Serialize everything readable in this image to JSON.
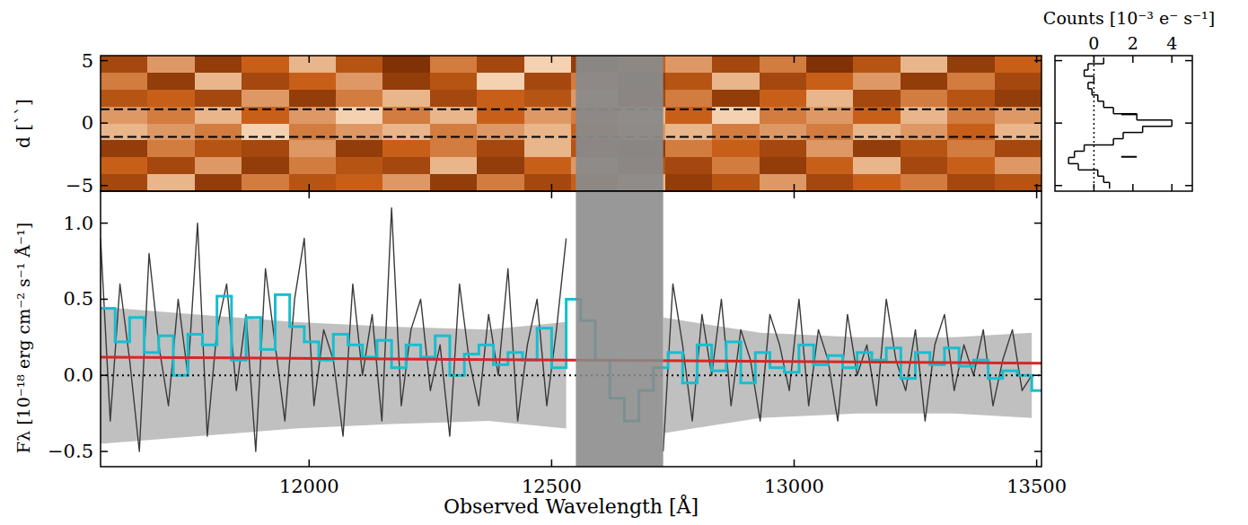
{
  "chart_data": [
    {
      "type": "heatmap",
      "ylabel": "d [``]",
      "xlim": [
        11570,
        13510
      ],
      "ylim": [
        -5.45,
        5.4
      ],
      "xticks": [
        12000,
        12500,
        13000,
        13500
      ],
      "yticks": [
        {
          "value": -5,
          "label": "−5"
        },
        {
          "value": 0,
          "label": "0"
        },
        {
          "value": 5,
          "label": "5"
        }
      ],
      "tick_labels": "y",
      "zlim": [
        0,
        1
      ],
      "masked": [
        12550,
        12730
      ],
      "aperture": [
        -1.1,
        1.1
      ],
      "cells": [
        [
          0.3,
          0.7,
          0.2,
          0.5,
          0.8,
          0.4,
          0.1,
          0.6,
          0.3,
          0.9,
          0.2,
          0.5,
          0.7,
          0.3,
          0.6,
          0.1,
          0.4,
          0.8,
          0.2,
          0.5
        ],
        [
          0.6,
          0.2,
          0.8,
          0.3,
          0.5,
          0.7,
          0.2,
          0.4,
          0.9,
          0.3,
          0.6,
          0.2,
          0.4,
          0.8,
          0.3,
          0.5,
          0.7,
          0.2,
          0.6,
          0.3
        ],
        [
          0.4,
          0.5,
          0.3,
          0.7,
          0.2,
          0.6,
          0.8,
          0.3,
          0.5,
          0.4,
          0.7,
          0.3,
          0.6,
          0.2,
          0.5,
          0.8,
          0.3,
          0.6,
          0.4,
          0.2
        ],
        [
          0.7,
          0.6,
          0.8,
          0.5,
          0.7,
          0.9,
          0.6,
          0.8,
          0.5,
          0.7,
          0.6,
          0.8,
          0.5,
          0.9,
          0.6,
          0.7,
          0.5,
          0.8,
          0.6,
          0.7
        ],
        [
          0.8,
          0.7,
          0.6,
          0.9,
          0.6,
          0.7,
          0.8,
          0.6,
          0.7,
          0.8,
          0.5,
          0.7,
          0.8,
          0.6,
          0.7,
          0.6,
          0.8,
          0.7,
          0.5,
          0.8
        ],
        [
          0.2,
          0.6,
          0.4,
          0.3,
          0.7,
          0.2,
          0.5,
          0.6,
          0.3,
          0.8,
          0.4,
          0.2,
          0.6,
          0.5,
          0.3,
          0.7,
          0.2,
          0.4,
          0.6,
          0.3
        ],
        [
          0.5,
          0.3,
          0.7,
          0.2,
          0.6,
          0.4,
          0.3,
          0.8,
          0.2,
          0.5,
          0.7,
          0.4,
          0.3,
          0.6,
          0.2,
          0.5,
          0.8,
          0.3,
          0.5,
          0.7
        ],
        [
          0.3,
          0.8,
          0.2,
          0.6,
          0.4,
          0.5,
          0.7,
          0.2,
          0.6,
          0.3,
          0.5,
          0.8,
          0.2,
          0.4,
          0.7,
          0.3,
          0.5,
          0.6,
          0.3,
          0.4
        ]
      ]
    },
    {
      "type": "line",
      "xlabel": "Observed Wavelength [Å]",
      "ylabel": "Fλ [10⁻¹⁸ erg cm⁻² s⁻¹ Å⁻¹]",
      "xlim": [
        11570,
        13510
      ],
      "ylim": [
        -0.6,
        1.21
      ],
      "xticks": [
        12000,
        12500,
        13000,
        13500
      ],
      "yticks": [
        {
          "value": -0.5,
          "label": "−0.5"
        },
        {
          "value": 0,
          "label": "0.0"
        },
        {
          "value": 0.5,
          "label": "0.5"
        },
        {
          "value": 1,
          "label": "1.0"
        }
      ],
      "masked": [
        12550,
        12730
      ],
      "hline": 0,
      "series": [
        {
          "type": "band",
          "color": "#c0c0c0",
          "x": [
            11570,
            11770,
            11970,
            12170,
            12370,
            12530,
            12630,
            12730,
            12930,
            13130,
            13330,
            13490
          ],
          "values": [
            0.45,
            0.4,
            0.35,
            0.32,
            0.3,
            0.35,
            null,
            0.38,
            0.28,
            0.25,
            0.25,
            0.28
          ]
        },
        {
          "type": "line",
          "color": "#3a3a3a",
          "x": [
            11570,
            11590,
            11610,
            11630,
            11650,
            11670,
            11690,
            11710,
            11730,
            11750,
            11770,
            11790,
            11810,
            11830,
            11850,
            11870,
            11890,
            11910,
            11930,
            11950,
            11970,
            11990,
            12010,
            12030,
            12050,
            12070,
            12090,
            12110,
            12130,
            12150,
            12170,
            12190,
            12210,
            12230,
            12250,
            12270,
            12290,
            12310,
            12330,
            12350,
            12370,
            12390,
            12410,
            12430,
            12450,
            12470,
            12490,
            12510,
            12530,
            12630,
            12730,
            12750,
            12770,
            12790,
            12810,
            12830,
            12850,
            12870,
            12890,
            12910,
            12930,
            12950,
            12970,
            12990,
            13010,
            13030,
            13050,
            13070,
            13090,
            13110,
            13130,
            13150,
            13170,
            13190,
            13210,
            13230,
            13250,
            13270,
            13290,
            13310,
            13330,
            13350,
            13370,
            13390,
            13410,
            13430,
            13450,
            13470,
            13490
          ],
          "values": [
            0.9,
            -0.3,
            0.6,
            0.1,
            -0.5,
            0.8,
            0.2,
            -0.2,
            0.5,
            0.0,
            1.0,
            -0.4,
            0.3,
            0.6,
            -0.1,
            0.4,
            -0.5,
            0.7,
            0.2,
            -0.3,
            0.5,
            0.9,
            -0.2,
            0.3,
            0.1,
            -0.4,
            0.6,
            0.0,
            0.4,
            -0.3,
            1.1,
            -0.2,
            0.3,
            0.5,
            -0.1,
            0.2,
            -0.4,
            0.6,
            0.1,
            -0.2,
            0.4,
            0.0,
            0.7,
            -0.3,
            0.2,
            0.5,
            -0.2,
            0.3,
            0.9,
            null,
            -0.5,
            0.6,
            0.2,
            -0.3,
            0.4,
            0.0,
            0.5,
            -0.2,
            0.3,
            0.1,
            -0.3,
            0.4,
            0.2,
            -0.1,
            0.5,
            -0.2,
            0.3,
            0.1,
            -0.3,
            0.4,
            0.0,
            0.2,
            -0.2,
            0.5,
            0.1,
            -0.1,
            0.3,
            -0.3,
            0.2,
            0.4,
            -0.1,
            0.2,
            0.0,
            0.3,
            -0.2,
            0.1,
            0.3,
            -0.1,
            0.0
          ]
        },
        {
          "type": "step",
          "color": "#17becf",
          "bins": [
            11570,
            11600,
            11630,
            11660,
            11690,
            11720,
            11750,
            11780,
            11810,
            11840,
            11870,
            11900,
            11930,
            11960,
            11990,
            12020,
            12050,
            12080,
            12110,
            12140,
            12170,
            12200,
            12230,
            12260,
            12290,
            12320,
            12350,
            12380,
            12410,
            12440,
            12470,
            12500,
            12530,
            12560,
            12590,
            12620,
            12650,
            12680,
            12710,
            12740,
            12770,
            12800,
            12830,
            12860,
            12890,
            12920,
            12950,
            12980,
            13010,
            13040,
            13070,
            13100,
            13130,
            13160,
            13190,
            13220,
            13250,
            13280,
            13310,
            13340,
            13370,
            13400,
            13430,
            13460,
            13490,
            13520
          ],
          "values": [
            0.44,
            0.22,
            0.38,
            0.15,
            0.26,
            0.0,
            0.27,
            0.2,
            0.52,
            0.1,
            0.38,
            0.17,
            0.53,
            0.32,
            0.22,
            0.1,
            0.27,
            0.2,
            0.12,
            0.23,
            0.05,
            0.2,
            0.12,
            0.26,
            0.0,
            0.14,
            0.2,
            0.07,
            0.15,
            0.1,
            0.31,
            0.05,
            0.5,
            0.36,
            0.1,
            -0.15,
            -0.3,
            -0.1,
            0.05,
            0.15,
            -0.05,
            0.2,
            0.03,
            0.22,
            -0.05,
            0.15,
            0.05,
            0.02,
            0.2,
            0.07,
            0.13,
            0.05,
            0.15,
            0.1,
            0.18,
            -0.02,
            0.15,
            0.07,
            0.18,
            0.06,
            0.1,
            -0.02,
            0.03,
            0.0,
            -0.1
          ]
        },
        {
          "type": "line",
          "color": "#d62728",
          "x": [
            11570,
            13510
          ],
          "values": [
            0.12,
            0.08
          ]
        }
      ]
    },
    {
      "type": "step",
      "xlabel": "Counts [10⁻³ e⁻ s⁻¹]",
      "xlim": [
        -2,
        5.05
      ],
      "ylim": [
        -5.45,
        5.4
      ],
      "xticks": [
        0,
        2,
        4
      ],
      "yticks": [
        -5,
        0,
        5
      ],
      "tick_labels": "x",
      "vline": 0,
      "color": "#000000",
      "y": [
        5,
        4.5,
        4,
        3.5,
        3,
        2.5,
        2,
        1.5,
        1,
        0.5,
        0,
        -0.5,
        -1,
        -1.5,
        -2,
        -2.5,
        -3,
        -3.5,
        -4,
        -4.5,
        -5
      ],
      "values": [
        0.5,
        -0.3,
        -0.5,
        0.0,
        -0.3,
        -0.1,
        0.2,
        0.5,
        1.0,
        2.2,
        4.0,
        2.5,
        1.5,
        1.0,
        -0.5,
        -1.0,
        -1.3,
        -0.8,
        0.2,
        0.5,
        0.8
      ],
      "marks": [
        0.7,
        -2.7
      ],
      "marks_x": [
        1.4,
        2.2
      ]
    }
  ]
}
